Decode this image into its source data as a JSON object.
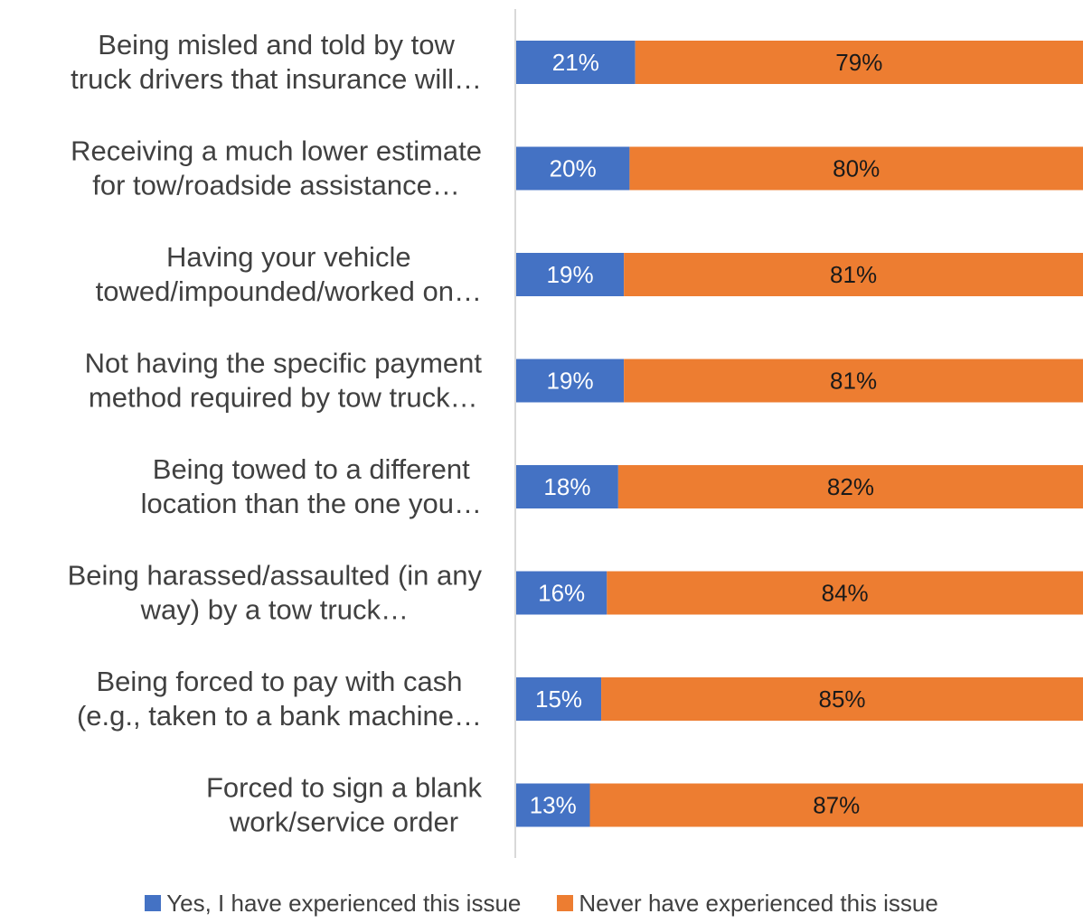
{
  "chart_data": {
    "type": "bar",
    "orientation": "horizontal",
    "stacked": true,
    "percent_stacked": true,
    "categories": [
      [
        "Being misled and told by tow",
        "truck drivers that insurance will…"
      ],
      [
        "Receiving a much lower estimate",
        "for tow/roadside assistance…"
      ],
      [
        "Having your vehicle",
        "towed/impounded/worked on…"
      ],
      [
        "Not having the specific payment",
        "method required by tow truck…"
      ],
      [
        "Being towed to a different",
        "location than the one you…"
      ],
      [
        "Being harassed/assaulted (in any",
        "way) by a tow truck…"
      ],
      [
        "Being forced to pay with cash",
        "(e.g., taken to a bank machine…"
      ],
      [
        "Forced to sign a blank",
        "work/service order"
      ]
    ],
    "series": [
      {
        "name": "Yes, I have experienced this issue",
        "color": "#4472C4",
        "values": [
          21,
          20,
          19,
          19,
          18,
          16,
          15,
          13
        ],
        "labels": [
          "21%",
          "20%",
          "19%",
          "19%",
          "18%",
          "16%",
          "15%",
          "13%"
        ]
      },
      {
        "name": "Never have experienced this issue",
        "color": "#ED7D31",
        "values": [
          79,
          80,
          81,
          81,
          82,
          84,
          85,
          87
        ],
        "labels": [
          "79%",
          "80%",
          "81%",
          "81%",
          "82%",
          "84%",
          "85%",
          "87%"
        ]
      }
    ],
    "xlim": [
      0,
      100
    ],
    "grid": false,
    "legend_position": "bottom"
  }
}
